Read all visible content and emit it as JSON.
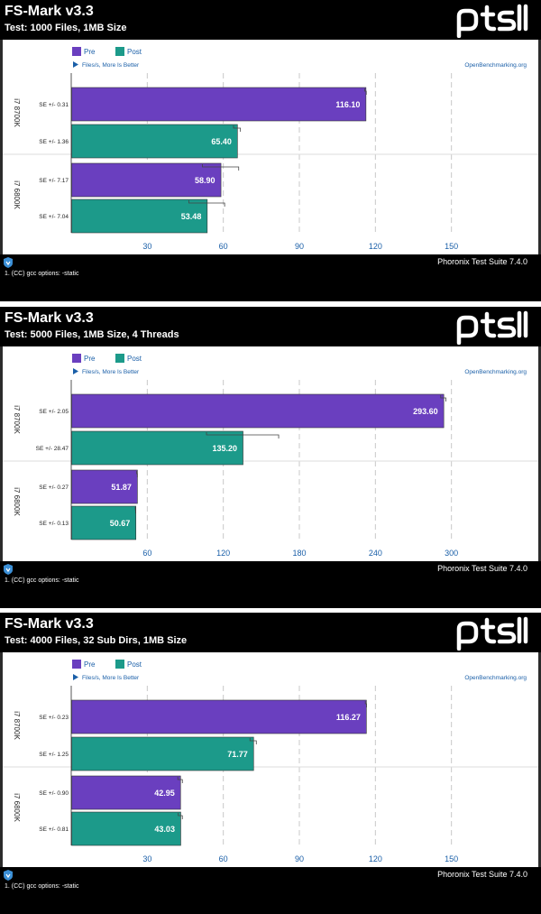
{
  "colors": {
    "pre": "#6a3fbf",
    "post": "#1c9a8a",
    "axis": "#1a5fa8",
    "grid": "#c8c8c8",
    "link": "#1a5fa8"
  },
  "common": {
    "legend": [
      "Pre",
      "Post"
    ],
    "unit_note": "Files/s, More Is Better",
    "site": "OpenBenchmarking.org",
    "footer_suite": "Phoronix Test Suite 7.4.0",
    "footer_note": "1. (CC) gcc options: -static"
  },
  "panels": [
    {
      "title": "FS-Mark v3.3",
      "subtitle": "Test: 1000 Files, 1MB Size",
      "chart_data": {
        "type": "bar",
        "orientation": "horizontal",
        "title": "FS-Mark v3.3",
        "subtitle": "Test: 1000 Files, 1MB Size",
        "xlabel": "Files/s, More Is Better",
        "xlim": [
          0,
          180
        ],
        "xticks": [
          30,
          60,
          90,
          120,
          150
        ],
        "grid": true,
        "legend": "top-left",
        "categories": [
          "i7 8700K",
          "i7 6800K"
        ],
        "series": [
          {
            "name": "Pre",
            "values": [
              116.1,
              58.9
            ],
            "se": [
              "SE +/- 0.31",
              "SE +/- 7.17"
            ],
            "err": [
              0.31,
              7.17
            ]
          },
          {
            "name": "Post",
            "values": [
              65.4,
              53.48
            ],
            "se": [
              "SE +/- 1.36",
              "SE +/- 7.04"
            ],
            "err": [
              1.36,
              7.04
            ]
          }
        ]
      }
    },
    {
      "title": "FS-Mark v3.3",
      "subtitle": "Test: 5000 Files, 1MB Size, 4 Threads",
      "chart_data": {
        "type": "bar",
        "orientation": "horizontal",
        "title": "FS-Mark v3.3",
        "subtitle": "Test: 5000 Files, 1MB Size, 4 Threads",
        "xlabel": "Files/s, More Is Better",
        "xlim": [
          0,
          360
        ],
        "xticks": [
          60,
          120,
          180,
          240,
          300
        ],
        "grid": true,
        "legend": "top-left",
        "categories": [
          "i7 8700K",
          "i7 6800K"
        ],
        "series": [
          {
            "name": "Pre",
            "values": [
              293.6,
              51.87
            ],
            "se": [
              "SE +/- 2.05",
              "SE +/- 0.27"
            ],
            "err": [
              2.05,
              0.27
            ]
          },
          {
            "name": "Post",
            "values": [
              135.2,
              50.67
            ],
            "se": [
              "SE +/- 28.47",
              "SE +/- 0.13"
            ],
            "err": [
              28.47,
              0.13
            ]
          }
        ]
      }
    },
    {
      "title": "FS-Mark v3.3",
      "subtitle": "Test: 4000 Files, 32 Sub Dirs, 1MB Size",
      "chart_data": {
        "type": "bar",
        "orientation": "horizontal",
        "title": "FS-Mark v3.3",
        "subtitle": "Test: 4000 Files, 32 Sub Dirs, 1MB Size",
        "xlabel": "Files/s, More Is Better",
        "xlim": [
          0,
          180
        ],
        "xticks": [
          30,
          60,
          90,
          120,
          150
        ],
        "grid": true,
        "legend": "top-left",
        "categories": [
          "i7 8700K",
          "i7 6800K"
        ],
        "series": [
          {
            "name": "Pre",
            "values": [
              116.27,
              42.95
            ],
            "se": [
              "SE +/- 0.23",
              "SE +/- 0.90"
            ],
            "err": [
              0.23,
              0.9
            ]
          },
          {
            "name": "Post",
            "values": [
              71.77,
              43.03
            ],
            "se": [
              "SE +/- 1.25",
              "SE +/- 0.81"
            ],
            "err": [
              1.25,
              0.81
            ]
          }
        ]
      }
    }
  ]
}
